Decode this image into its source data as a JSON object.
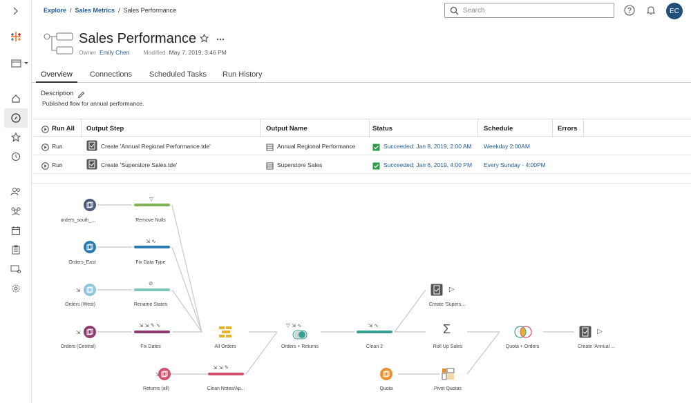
{
  "breadcrumb": {
    "items": [
      "Explore",
      "Sales Metrics"
    ],
    "current": "Sales Performance",
    "separator": "/"
  },
  "search": {
    "placeholder": "Search"
  },
  "user": {
    "initials": "EC"
  },
  "flow": {
    "title": "Sales Performance",
    "owner_label": "Owner",
    "owner_name": "Emily Chen",
    "modified_label": "Modified",
    "modified_value": "May 7, 2019, 3:46 PM"
  },
  "tabs": [
    {
      "label": "Overview",
      "active": true
    },
    {
      "label": "Connections",
      "active": false
    },
    {
      "label": "Scheduled Tasks",
      "active": false
    },
    {
      "label": "Run History",
      "active": false
    }
  ],
  "description": {
    "label": "Description",
    "text": "Published flow for annual performance."
  },
  "table": {
    "headers": {
      "run_all": "Run All",
      "output_step": "Output Step",
      "output_name": "Output Name",
      "status": "Status",
      "schedule": "Schedule",
      "errors": "Errors"
    },
    "rows": [
      {
        "run": "Run",
        "output_step": "Create 'Annual Regional Performance.tde'",
        "output_name": "Annual Regional Performance",
        "status": "Succeeded: Jan 8, 2019, 2:00 AM",
        "schedule": "Weekday 2:00AM",
        "errors": ""
      },
      {
        "run": "Run",
        "output_step": "Create 'Superstore Sales.tde'",
        "output_name": "Superstore Sales",
        "status": "Succeeded: Jan 6, 2019, 4:00 PM",
        "schedule": "Every Sunday - 4:00PM",
        "errors": ""
      }
    ]
  },
  "flow_nodes": {
    "in_south": "orders_south_...",
    "in_east": "Orders_East",
    "in_west": "Orders (West)",
    "in_central": "Orders (Central)",
    "in_returns": "Returns (all)",
    "remove_nulls": "Remove Nulls",
    "fix_data_type": "Fix Data Type",
    "rename_states": "Rename States",
    "fix_dates": "Fix Dates",
    "clean_notes": "Clean Notes/Ap...",
    "all_orders": "All Orders",
    "orders_returns": "Orders + Returns",
    "clean2": "Clean 2",
    "create_superstore": "Create 'Supers...",
    "roll_up_sales": "Roll Up Sales",
    "quota": "Quota",
    "pivot_quotas": "Pivot Quotas",
    "quota_orders": "Quota + Orders",
    "create_annual": "Create 'Annual ..."
  },
  "colors": {
    "link": "#1f5a96",
    "green_bar": "#7fb356",
    "blue_bar": "#2a7ab0",
    "teal_bar": "#7fc4b8",
    "plum_bar": "#8a3c6e",
    "pink_bar": "#d1506e",
    "teal2_bar": "#3a9e93",
    "success": "#2e9a4a"
  }
}
